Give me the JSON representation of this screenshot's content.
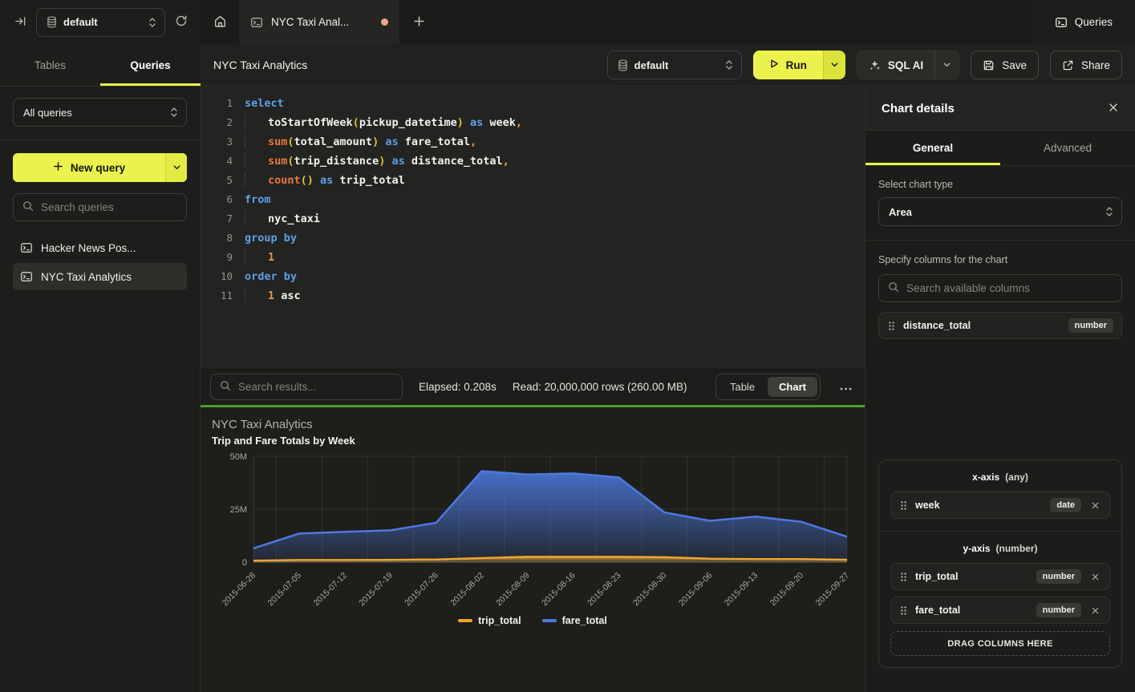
{
  "topbar": {
    "database_selector": "default",
    "tab_title": "NYC Taxi Anal...",
    "queries_nav": "Queries"
  },
  "sidebar": {
    "tabs": [
      {
        "label": "Tables"
      },
      {
        "label": "Queries"
      }
    ],
    "active_tab": "Queries",
    "filter_select": "All queries",
    "new_query_button": "New query",
    "search_placeholder": "Search queries",
    "query_list": [
      {
        "label": "Hacker News Pos...",
        "selected": false
      },
      {
        "label": "NYC Taxi Analytics",
        "selected": true
      }
    ]
  },
  "header": {
    "title": "NYC Taxi Analytics",
    "database_selector": "default",
    "run_button": "Run",
    "sql_ai_button": "SQL AI",
    "save_button": "Save",
    "share_button": "Share"
  },
  "editor": {
    "lines": [
      {
        "n": 1,
        "indent": false,
        "tokens": [
          [
            "kw",
            "select"
          ]
        ]
      },
      {
        "n": 2,
        "indent": true,
        "tokens": [
          [
            "id",
            "toStartOfWeek"
          ],
          [
            "paren",
            "("
          ],
          [
            "id",
            "pickup_datetime"
          ],
          [
            "paren",
            ")"
          ],
          [
            "kw",
            " as "
          ],
          [
            "id",
            "week"
          ],
          [
            "punct",
            ","
          ]
        ]
      },
      {
        "n": 3,
        "indent": true,
        "tokens": [
          [
            "fn",
            "sum"
          ],
          [
            "paren",
            "("
          ],
          [
            "id",
            "total_amount"
          ],
          [
            "paren",
            ")"
          ],
          [
            "kw",
            " as "
          ],
          [
            "id",
            "fare_total"
          ],
          [
            "punct",
            ","
          ]
        ]
      },
      {
        "n": 4,
        "indent": true,
        "tokens": [
          [
            "fn",
            "sum"
          ],
          [
            "paren",
            "("
          ],
          [
            "id",
            "trip_distance"
          ],
          [
            "paren",
            ")"
          ],
          [
            "kw",
            " as "
          ],
          [
            "id",
            "distance_total"
          ],
          [
            "punct",
            ","
          ]
        ]
      },
      {
        "n": 5,
        "indent": true,
        "tokens": [
          [
            "fn",
            "count"
          ],
          [
            "paren",
            "()"
          ],
          [
            "kw",
            " as "
          ],
          [
            "id",
            "trip_total"
          ]
        ]
      },
      {
        "n": 6,
        "indent": false,
        "tokens": [
          [
            "kw",
            "from"
          ]
        ]
      },
      {
        "n": 7,
        "indent": true,
        "tokens": [
          [
            "id",
            "nyc_taxi"
          ]
        ]
      },
      {
        "n": 8,
        "indent": false,
        "tokens": [
          [
            "kw",
            "group by"
          ]
        ]
      },
      {
        "n": 9,
        "indent": true,
        "tokens": [
          [
            "num",
            "1"
          ]
        ]
      },
      {
        "n": 10,
        "indent": false,
        "tokens": [
          [
            "kw",
            "order by"
          ]
        ]
      },
      {
        "n": 11,
        "indent": true,
        "tokens": [
          [
            "num",
            "1"
          ],
          [
            "id",
            " asc"
          ]
        ]
      }
    ]
  },
  "results_bar": {
    "search_placeholder": "Search results...",
    "elapsed": "Elapsed: 0.208s",
    "read": "Read: 20,000,000 rows (260.00 MB)",
    "view_toggle": [
      "Table",
      "Chart"
    ],
    "active_view": "Chart"
  },
  "chart_data": {
    "type": "area",
    "title": "NYC Taxi Analytics",
    "subtitle": "Trip and Fare Totals by Week",
    "x": [
      "2015-06-28",
      "2015-07-05",
      "2015-07-12",
      "2015-07-19",
      "2015-07-26",
      "2015-08-02",
      "2015-08-09",
      "2015-08-16",
      "2015-08-23",
      "2015-08-30",
      "2015-09-06",
      "2015-09-13",
      "2015-09-20",
      "2015-09-27"
    ],
    "series": [
      {
        "name": "trip_total",
        "color": "#eda42f",
        "values": [
          700000,
          1000000,
          1000000,
          1050000,
          1200000,
          1900000,
          2500000,
          2500000,
          2500000,
          2300000,
          1600000,
          1400000,
          1400000,
          1100000
        ]
      },
      {
        "name": "fare_total",
        "color": "#4c79e0",
        "values": [
          6500000,
          13500000,
          14300000,
          15000000,
          18600000,
          43000000,
          41400000,
          41900000,
          40000000,
          23500000,
          19500000,
          21500000,
          19000000,
          12000000
        ]
      }
    ],
    "ylim": [
      0,
      50000000
    ],
    "yticks": [
      [
        0,
        "0"
      ],
      [
        25000000,
        "25M"
      ],
      [
        50000000,
        "50M"
      ]
    ],
    "grid": true,
    "legend_position": "bottom"
  },
  "chart_panel": {
    "title": "Chart details",
    "tabs": [
      {
        "label": "General"
      },
      {
        "label": "Advanced"
      }
    ],
    "active_tab": "General",
    "chart_type_label": "Select chart type",
    "chart_type_value": "Area",
    "columns_label": "Specify columns for the chart",
    "columns_search_placeholder": "Search available columns",
    "available_columns": [
      {
        "name": "distance_total",
        "type": "number"
      }
    ],
    "x_axis": {
      "label": "x-axis",
      "constraint": "(any)",
      "columns": [
        {
          "name": "week",
          "type": "date"
        }
      ]
    },
    "y_axis": {
      "label": "y-axis",
      "constraint": "(number)",
      "columns": [
        {
          "name": "trip_total",
          "type": "number"
        },
        {
          "name": "fare_total",
          "type": "number"
        }
      ]
    },
    "drop_zone": "DRAG COLUMNS HERE"
  },
  "icons": {
    "collapse-sidebar-icon": "arrow-right-to-bar",
    "database-icon": "cylinder-stack",
    "refresh-icon": "circular-arrow",
    "home-icon": "house-outline",
    "query-terminal-icon": "terminal-window",
    "unsaved-dot": "#f2a482",
    "plus-icon": "+",
    "run-play-icon": "play-triangle",
    "sparkle-icon": "ai-sparkles",
    "save-icon": "floppy-disk",
    "share-icon": "box-arrow-out",
    "search-icon": "magnifier",
    "updown-chevrons-icon": "sort-chevrons",
    "chevron-down-icon": "v",
    "close-icon": "x",
    "drag-handle-icon": "six-dots",
    "ellipsis-icon": "three-dots"
  },
  "accent_colors": {
    "yellow": "#ebf24d",
    "green": "#4f9d2f",
    "tab_dot_orange": "#f2a482"
  }
}
